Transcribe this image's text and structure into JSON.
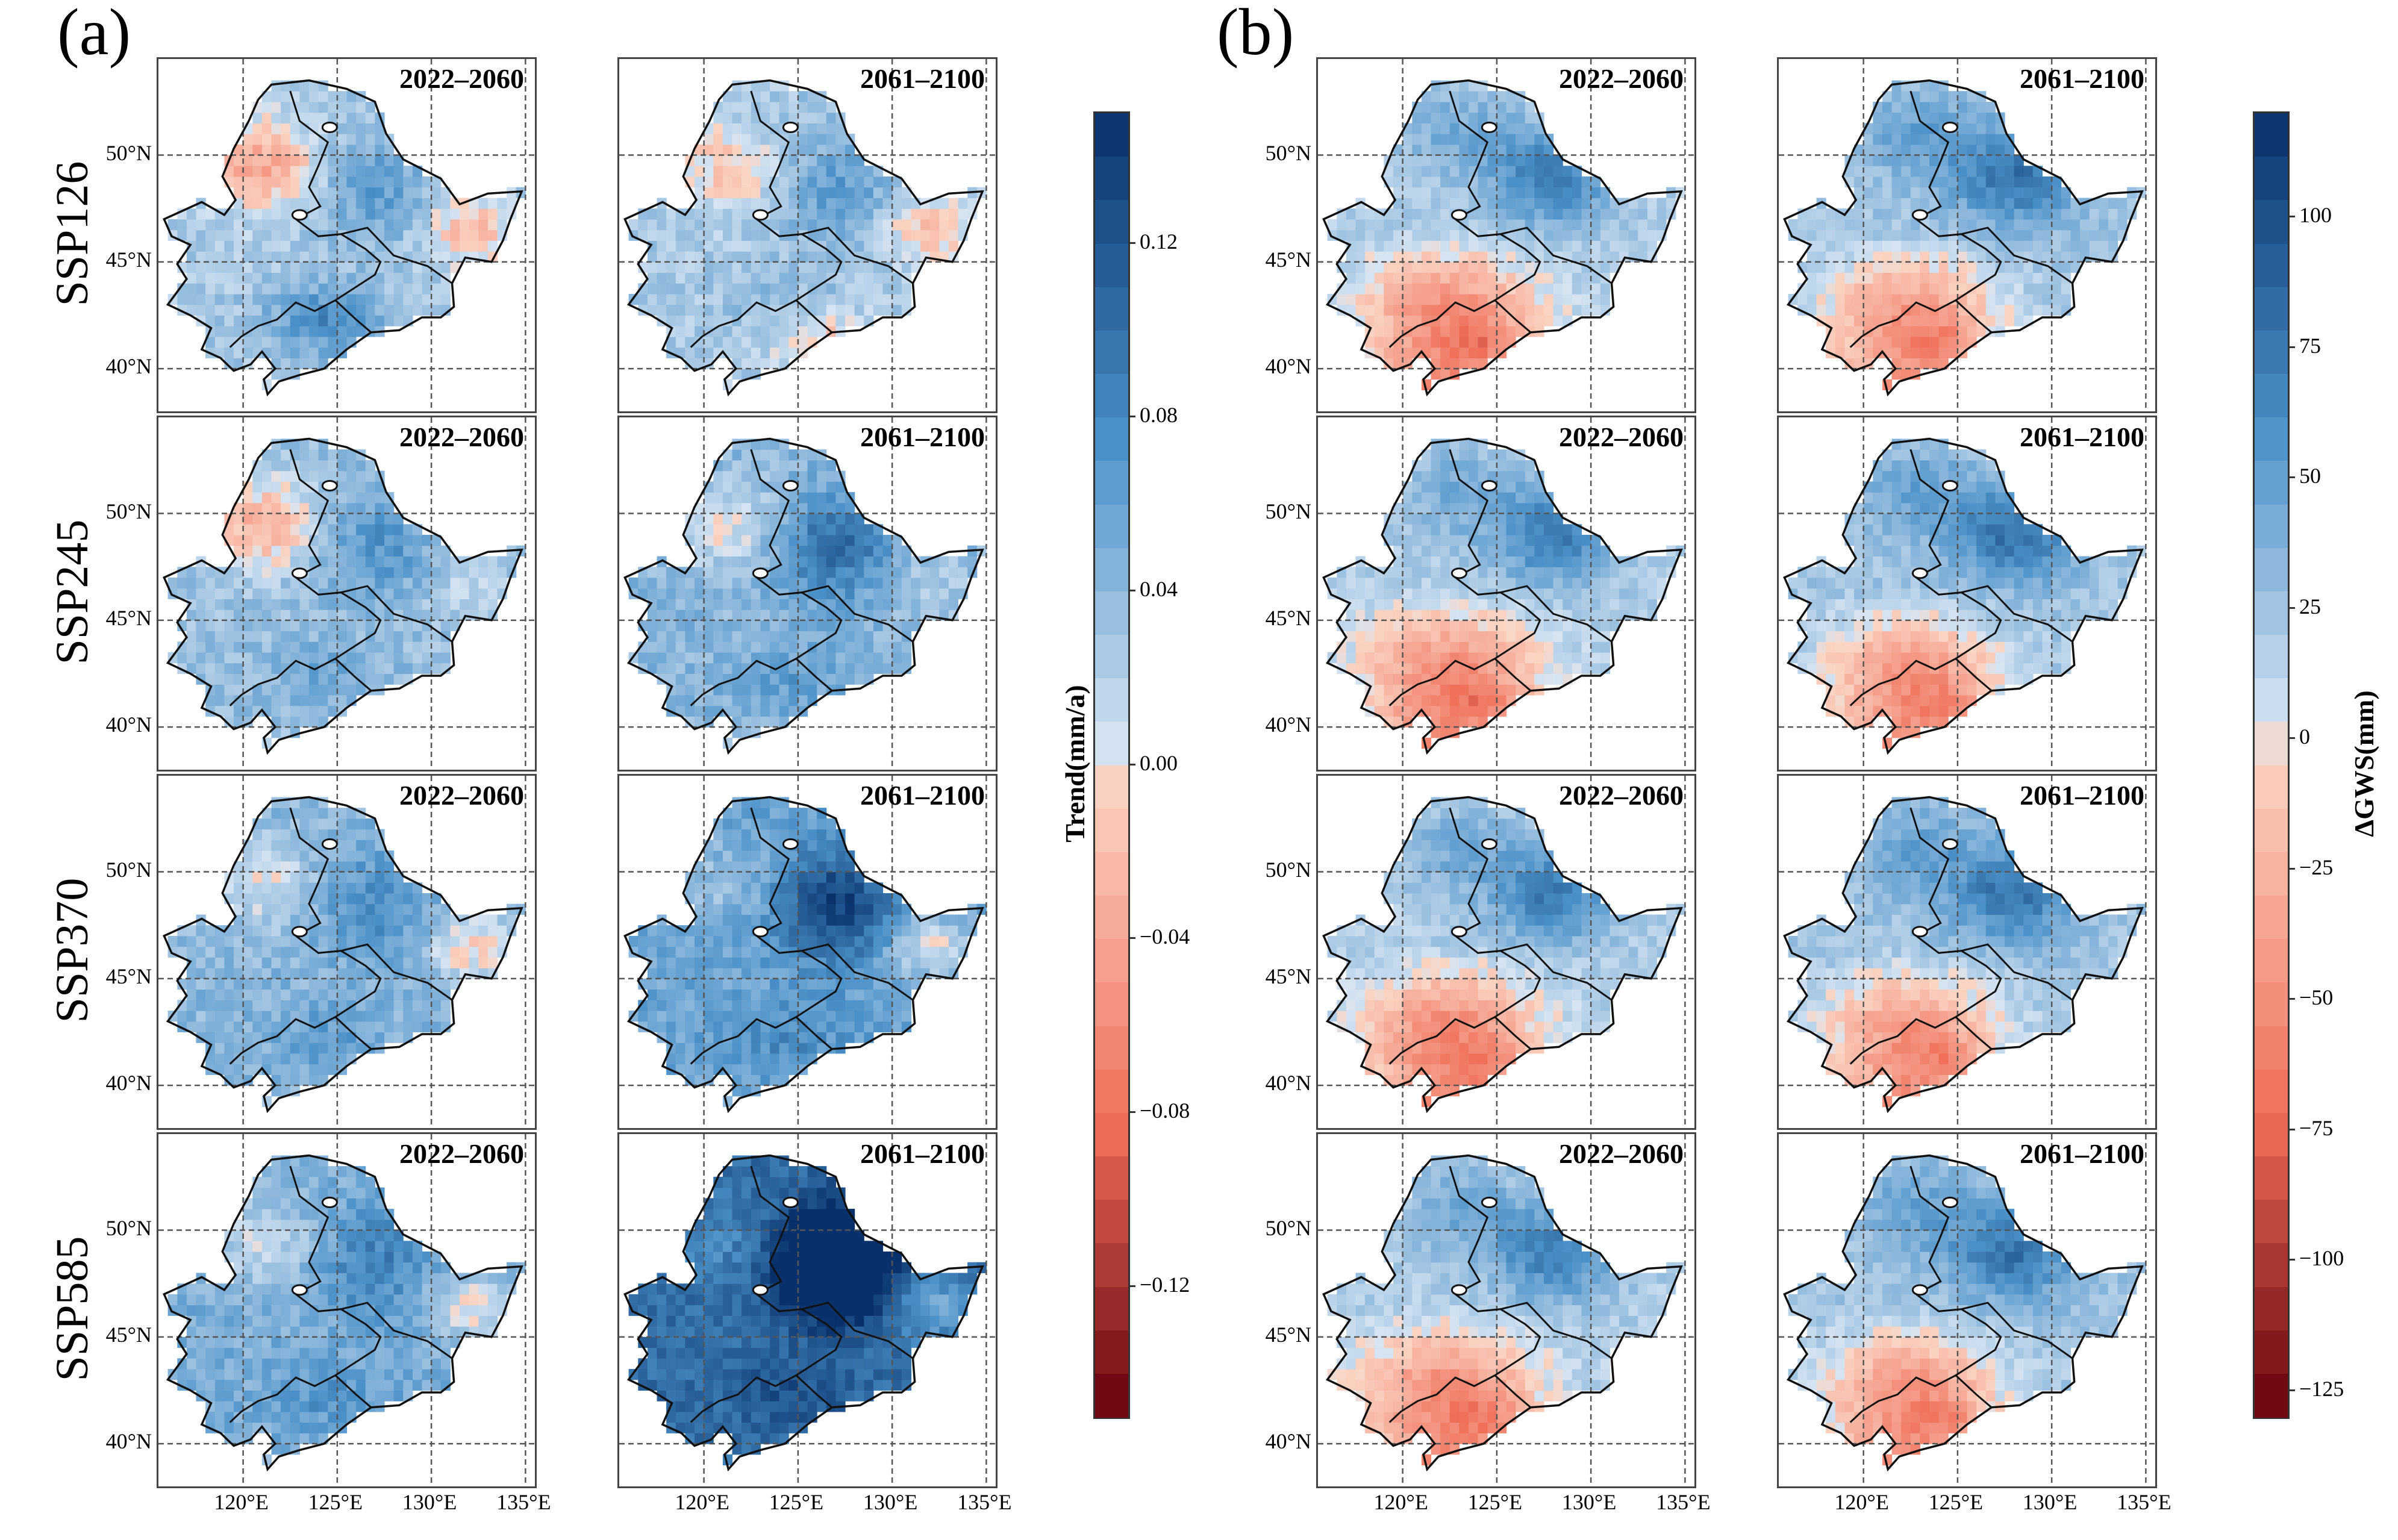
{
  "panels": [
    {
      "letter": "(a)",
      "colorbar": {
        "label": "Trend(mm/a)",
        "ticks": [
          "0.12",
          "0.08",
          "0.04",
          "0.00",
          "−0.04",
          "−0.08",
          "−0.12"
        ],
        "tick_values": [
          0.12,
          0.08,
          0.04,
          0.0,
          -0.04,
          -0.08,
          -0.12
        ],
        "range": [
          -0.15,
          0.15
        ]
      }
    },
    {
      "letter": "(b)",
      "colorbar": {
        "label": "ΔGWS(mm)",
        "ticks": [
          "100",
          "75",
          "50",
          "25",
          "0",
          "−25",
          "−50",
          "−75",
          "−100",
          "−125"
        ],
        "tick_values": [
          100,
          75,
          50,
          25,
          0,
          -25,
          -50,
          -75,
          -100,
          -125
        ],
        "range": [
          -130,
          120
        ]
      }
    }
  ],
  "scenarios": [
    "SSP126",
    "SSP245",
    "SSP370",
    "SSP585"
  ],
  "periods": [
    "2022–2060",
    "2061–2100"
  ],
  "lat_ticks": [
    "50°N",
    "45°N",
    "40°N"
  ],
  "lon_ticks": [
    "120°E",
    "125°E",
    "130°E",
    "135°E"
  ],
  "colors": {
    "blue_dark": "#08306b",
    "blue_mid": "#4a90c8",
    "blue_light": "#d6e4f2",
    "red_light": "#fbd5c4",
    "red_mid": "#ef6f5a",
    "red_dark": "#67000d",
    "border": "#111111",
    "grid": "#555555"
  }
}
